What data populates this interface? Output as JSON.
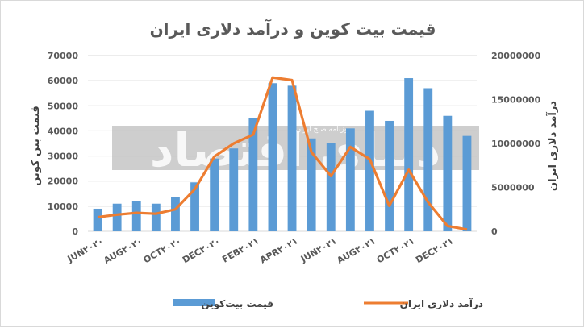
{
  "chart_data": {
    "type": "bar",
    "title": "قیمت بیت کوین و درآمد دلاری ایران",
    "ylabel_left": "قیمت بین کوین",
    "ylabel_right": "درآمد دلاری ایران",
    "left_ticks": [
      "0",
      "10000",
      "20000",
      "30000",
      "40000",
      "50000",
      "60000",
      "70000"
    ],
    "right_ticks": [
      "0",
      "5000000",
      "10000000",
      "15000000",
      "20000000"
    ],
    "ylim_left": [
      0,
      70000
    ],
    "ylim_right": [
      0,
      20000000
    ],
    "x_tick_labels": [
      "JUN۲۰۲۰",
      "AUG۲۰۲۰",
      "OCT۲۰۲۰",
      "DEC۲۰۲۰",
      "FEB۲۰۲۱",
      "APR۲۰۲۱",
      "JUN۲۰۲۱",
      "AUG۲۰۲۱",
      "OCT۲۰۲۱",
      "DEC۲۰۲۱"
    ],
    "x_tick_every": 2,
    "series": [
      {
        "name": "قیمت بیت‌کوین",
        "type": "bar",
        "axis": "left",
        "color": "#5b9bd5",
        "values": [
          9000,
          11000,
          12000,
          11000,
          13500,
          19500,
          29000,
          33000,
          45000,
          59000,
          58000,
          37000,
          35000,
          41000,
          48000,
          44000,
          61000,
          57000,
          46000,
          38000
        ]
      },
      {
        "name": "درآمد دلاری ایران",
        "type": "line",
        "axis": "right",
        "color": "#ed7d31",
        "values": [
          1600000,
          1900000,
          2100000,
          2000000,
          2500000,
          4800000,
          8500000,
          10000000,
          11000000,
          17500000,
          17200000,
          9000000,
          6300000,
          9600000,
          8200000,
          2900000,
          7000000,
          3300000,
          600000,
          200000
        ]
      }
    ],
    "grid": true,
    "legend": "bottom"
  },
  "watermark": {
    "text": "دنیای اقتصاد",
    "subtext": "روزنامه صبح ایران"
  }
}
